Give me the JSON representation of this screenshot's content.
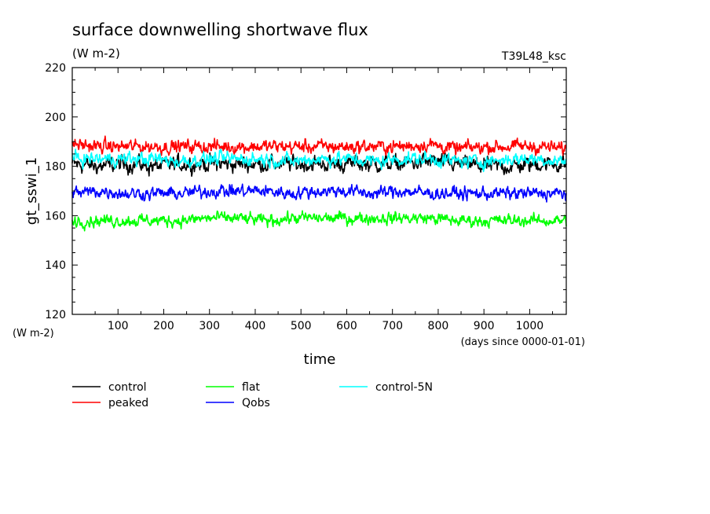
{
  "chart_data": {
    "type": "line",
    "title": "surface downwelling shortwave flux",
    "units": "(W m-2)",
    "experiment": "T39L48_ksc",
    "xlabel": "time",
    "xunits": "(days since 0000-01-01)",
    "ylabel": "gt_sswi_1",
    "yunits": "(W m-2)",
    "xlim": [
      0,
      1080
    ],
    "ylim": [
      120,
      220
    ],
    "xticks": [
      100,
      200,
      300,
      400,
      500,
      600,
      700,
      800,
      900,
      1000
    ],
    "yticks": [
      120,
      140,
      160,
      180,
      200,
      220
    ],
    "grid": false,
    "legend_position": "bottom",
    "series": [
      {
        "name": "control",
        "color": "#000000",
        "mean": 181,
        "noise": 2.2,
        "x": [
          0,
          60,
          120,
          180,
          240,
          300,
          360,
          420,
          480,
          540,
          600,
          660,
          720,
          780,
          840,
          900,
          960,
          1020,
          1080
        ],
        "values": [
          181,
          180,
          181,
          180,
          181,
          181,
          181,
          181,
          181,
          181,
          181,
          181,
          181,
          182,
          181,
          180,
          180,
          181,
          181
        ]
      },
      {
        "name": "peaked",
        "color": "#ff0000",
        "mean": 188,
        "noise": 1.8,
        "x": [
          0,
          60,
          120,
          180,
          240,
          300,
          360,
          420,
          480,
          540,
          600,
          660,
          720,
          780,
          840,
          900,
          960,
          1020,
          1080
        ],
        "values": [
          189,
          188,
          188,
          188,
          188,
          188,
          188,
          188,
          188,
          188,
          188,
          188,
          188,
          189,
          187,
          188,
          188,
          188,
          187
        ]
      },
      {
        "name": "flat",
        "color": "#00ff00",
        "mean": 158.5,
        "noise": 1.6,
        "x": [
          0,
          60,
          120,
          180,
          240,
          300,
          360,
          420,
          480,
          540,
          600,
          660,
          720,
          780,
          840,
          900,
          960,
          1020,
          1080
        ],
        "values": [
          158,
          158,
          158,
          158,
          158,
          159,
          159,
          158,
          159,
          159,
          159,
          159,
          159,
          159,
          158,
          158,
          158,
          158,
          158
        ]
      },
      {
        "name": "Qobs",
        "color": "#0000ff",
        "mean": 170,
        "noise": 1.7,
        "x": [
          0,
          60,
          120,
          180,
          240,
          300,
          360,
          420,
          480,
          540,
          600,
          660,
          720,
          780,
          840,
          900,
          960,
          1020,
          1080
        ],
        "values": [
          169,
          170,
          169,
          169,
          169,
          170,
          170,
          170,
          169,
          170,
          170,
          169,
          170,
          169,
          169,
          169,
          169,
          169,
          169
        ]
      },
      {
        "name": "control-5N",
        "color": "#00ffff",
        "mean": 183,
        "noise": 1.8,
        "x": [
          0,
          60,
          120,
          180,
          240,
          300,
          360,
          420,
          480,
          540,
          600,
          660,
          720,
          780,
          840,
          900,
          960,
          1020,
          1080
        ],
        "values": [
          183,
          183,
          183,
          183,
          182,
          183,
          183,
          183,
          182,
          183,
          183,
          182,
          183,
          183,
          182,
          182,
          183,
          183,
          182
        ]
      }
    ]
  }
}
